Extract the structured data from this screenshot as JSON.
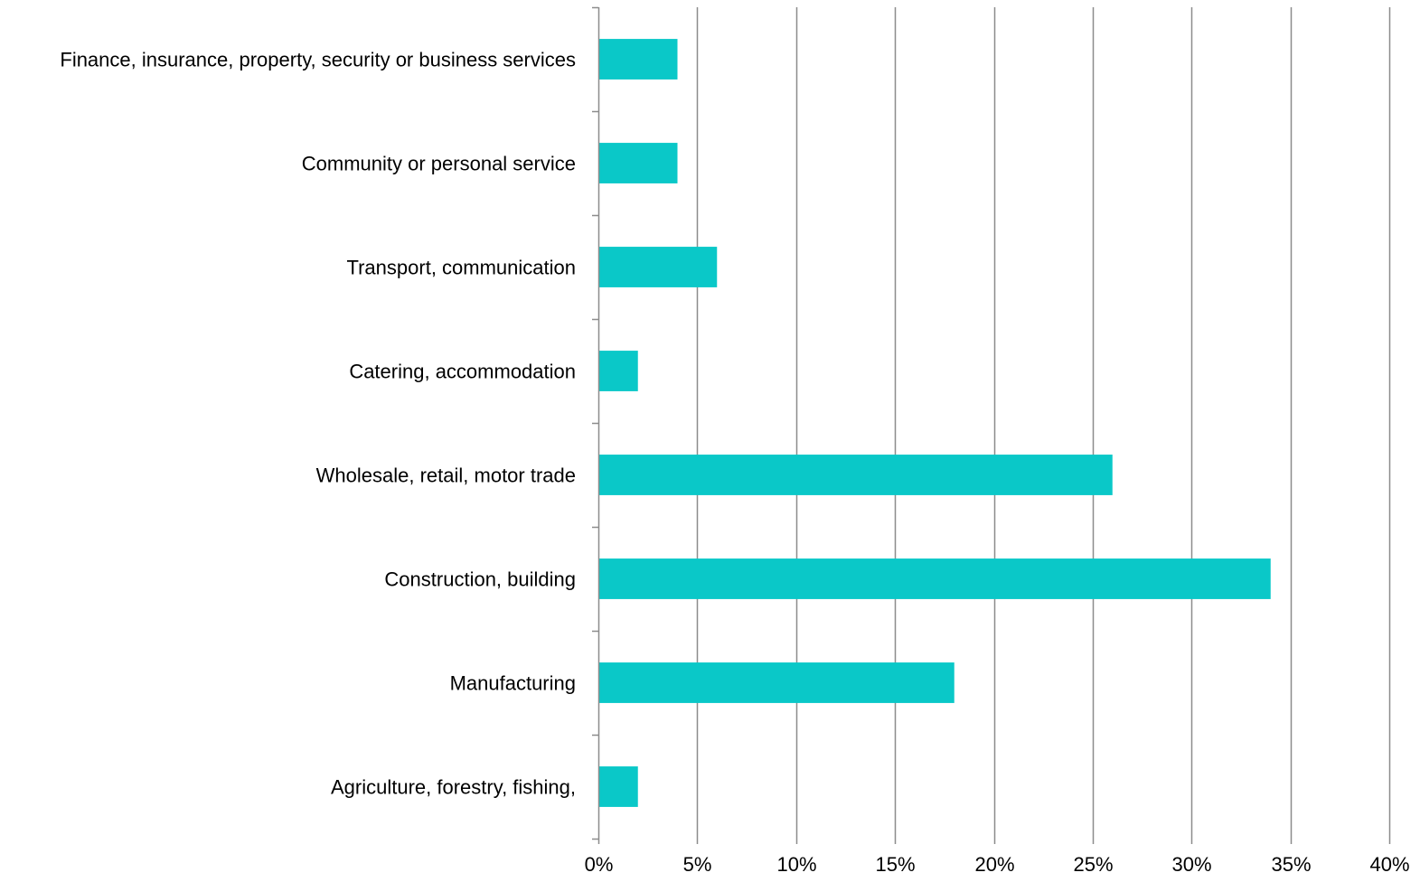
{
  "chart_data": {
    "type": "bar",
    "orientation": "horizontal",
    "title": "",
    "xlabel": "",
    "ylabel": "",
    "categories": [
      "Finance, insurance, property, security or business services",
      "Community or personal service",
      "Transport, communication",
      "Catering, accommodation",
      "Wholesale, retail, motor trade",
      "Construction, building",
      "Manufacturing",
      "Agriculture, forestry, fishing,"
    ],
    "values": [
      4,
      4,
      6,
      2,
      26,
      34,
      18,
      2
    ],
    "unit": "%",
    "xlim": [
      0,
      40
    ],
    "x_ticks": [
      0,
      5,
      10,
      15,
      20,
      25,
      30,
      35,
      40
    ],
    "x_tick_labels": [
      "0%",
      "5%",
      "10%",
      "15%",
      "20%",
      "25%",
      "30%",
      "35%",
      "40%"
    ],
    "grid": "vertical",
    "legend": "none",
    "colors": {
      "bar": "#0ac8c8",
      "grid": "#8c8c8c",
      "axis": "#8c8c8c",
      "text": "#000000"
    }
  }
}
